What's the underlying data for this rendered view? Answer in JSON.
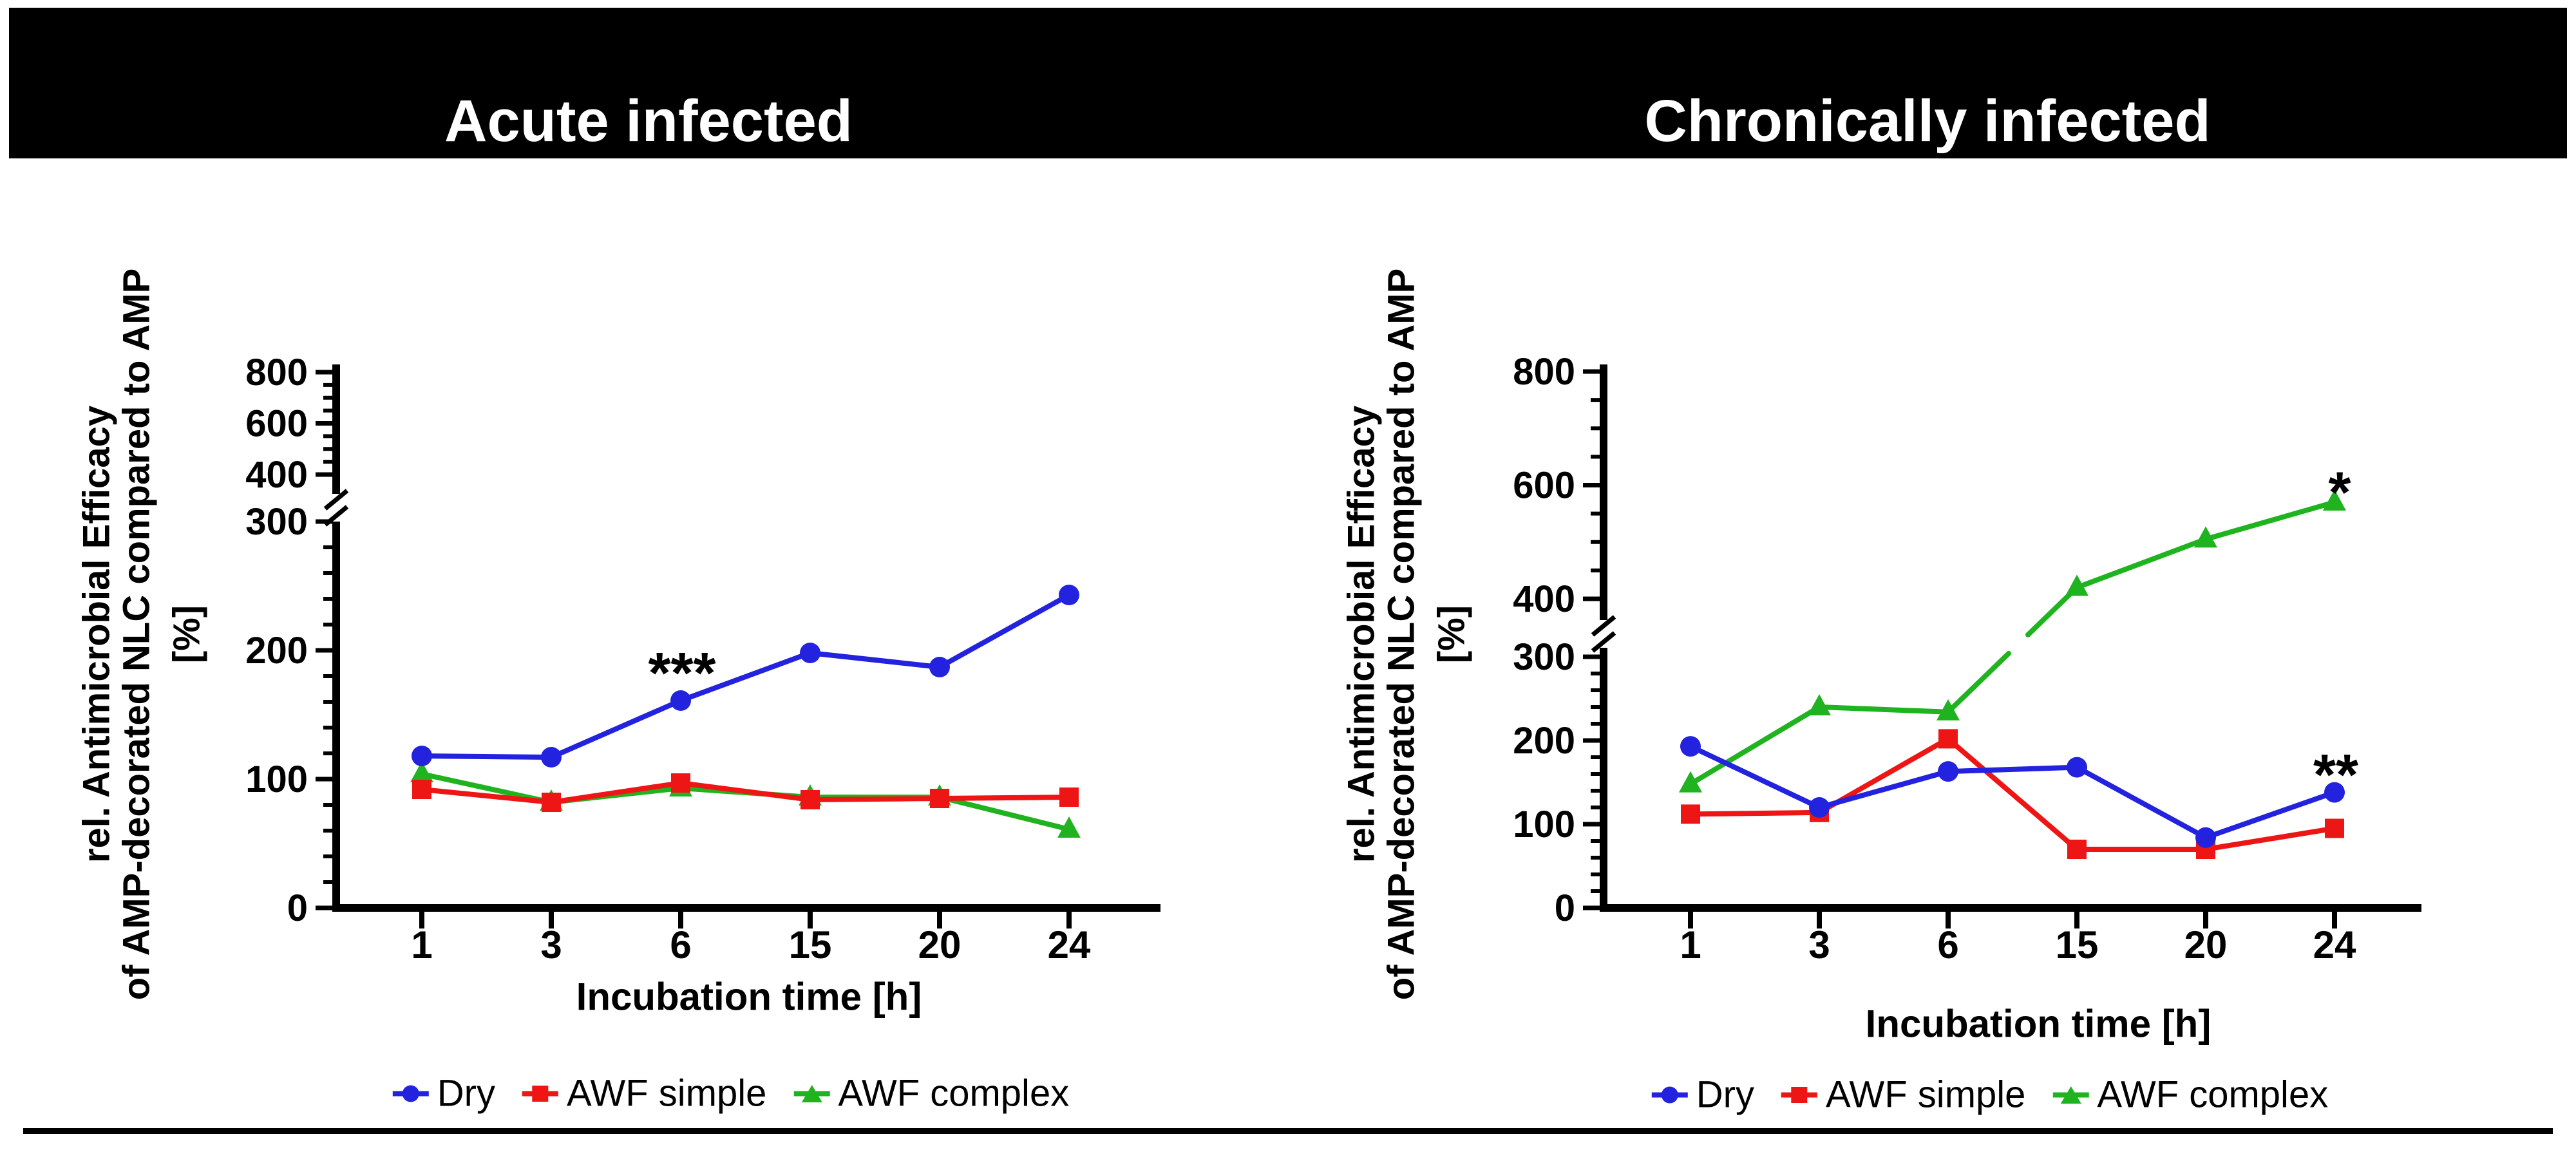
{
  "figure": {
    "background": "#ffffff",
    "bottom_rule_color": "#000000"
  },
  "header": {
    "bar_color": "#000000",
    "text_color": "#ffffff"
  },
  "chart_data": [
    {
      "id": "acute",
      "type": "line",
      "title": "Acute infected",
      "x_categories": [
        1,
        3,
        6,
        15,
        20,
        24
      ],
      "xlabel": "Incubation time [h]",
      "ylabel_lines": [
        "rel. Antimicrobial Efficacy",
        "of AMP-decorated NLC compared to AMP",
        "[%]"
      ],
      "y_axis": {
        "lower_range": [
          0,
          300
        ],
        "upper_range": [
          400,
          800
        ],
        "break_between": [
          300,
          400
        ],
        "lower_major_ticks": [
          0,
          100,
          200,
          300
        ],
        "upper_major_ticks": [
          400,
          600,
          800
        ],
        "lower_minor_step": 20,
        "upper_minor_step": 50,
        "grid": false
      },
      "series": [
        {
          "name": "Dry",
          "marker": "circle",
          "color": "#2222DF",
          "values": [
            118,
            117,
            161,
            198,
            187,
            243
          ]
        },
        {
          "name": "AWF simple",
          "marker": "square",
          "color": "#EE1515",
          "values": [
            92,
            82,
            97,
            84,
            85,
            86
          ]
        },
        {
          "name": "AWF complex",
          "marker": "triangle",
          "color": "#1FB41F",
          "values": [
            104,
            82,
            93,
            86,
            86,
            61
          ]
        }
      ],
      "annotations": [
        {
          "text": "***",
          "x_category": 6,
          "value": 187,
          "dx": 2
        }
      ],
      "legend_position": "bottom"
    },
    {
      "id": "chronic",
      "type": "line",
      "title": "Chronically infected",
      "x_categories": [
        1,
        3,
        6,
        15,
        20,
        24
      ],
      "xlabel": "Incubation time [h]",
      "ylabel_lines": [
        "rel. Antimicrobial Efficacy",
        "of AMP-decorated NLC compared to AMP",
        "[%]"
      ],
      "y_axis": {
        "lower_range": [
          0,
          300
        ],
        "upper_range": [
          400,
          800
        ],
        "break_between": [
          300,
          400
        ],
        "lower_major_ticks": [
          0,
          100,
          200,
          300
        ],
        "upper_major_ticks": [
          400,
          600,
          800
        ],
        "lower_minor_step": 20,
        "upper_minor_step": 50,
        "grid": false
      },
      "series": [
        {
          "name": "Dry",
          "marker": "circle",
          "color": "#2222DF",
          "values": [
            193,
            120,
            163,
            168,
            84,
            138
          ]
        },
        {
          "name": "AWF simple",
          "marker": "square",
          "color": "#EE1515",
          "values": [
            112,
            114,
            202,
            70,
            70,
            95
          ]
        },
        {
          "name": "AWF complex",
          "marker": "triangle",
          "color": "#1FB41F",
          "values": [
            148,
            240,
            234,
            420,
            505,
            570
          ]
        }
      ],
      "annotations": [
        {
          "text": "*",
          "x_category": 24,
          "value": 598,
          "dx": 8
        },
        {
          "text": "**",
          "x_category": 24,
          "value": 166,
          "dx": 2
        }
      ],
      "legend_position": "bottom"
    }
  ]
}
